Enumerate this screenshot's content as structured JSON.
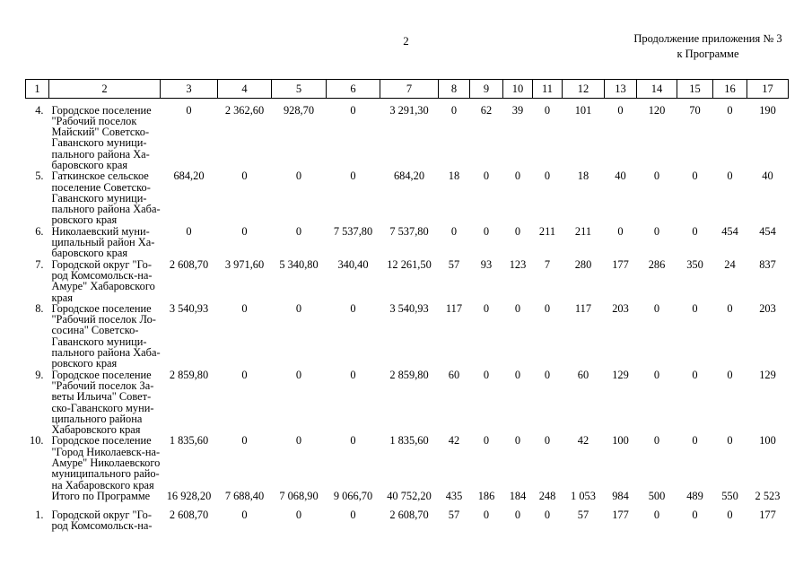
{
  "page_header": {
    "page_number": "2",
    "appendix_line1": "Продолжение приложения № 3",
    "appendix_line2": "к Программе"
  },
  "table": {
    "column_numbers": [
      "1",
      "2",
      "3",
      "4",
      "5",
      "6",
      "7",
      "8",
      "9",
      "10",
      "11",
      "12",
      "13",
      "14",
      "15",
      "16",
      "17"
    ],
    "rows": [
      {
        "num": "4.",
        "name_lines": [
          "Городское поселение",
          "\"Рабочий поселок",
          "Майский\" Советско-",
          "Гаванского муници-",
          "пального района Ха-",
          "баровского края"
        ],
        "values": [
          "0",
          "2 362,60",
          "928,70",
          "0",
          "3 291,30",
          "0",
          "62",
          "39",
          "0",
          "101",
          "0",
          "120",
          "70",
          "0",
          "190"
        ]
      },
      {
        "num": "5.",
        "name_lines": [
          "Гаткинское сельское",
          "поселение Советско-",
          "Гаванского муници-",
          "пального района Хаба-",
          "ровского края"
        ],
        "values": [
          "684,20",
          "0",
          "0",
          "0",
          "684,20",
          "18",
          "0",
          "0",
          "0",
          "18",
          "40",
          "0",
          "0",
          "0",
          "40"
        ]
      },
      {
        "num": "6.",
        "name_lines": [
          "Николаевский муни-",
          "ципальный район Ха-",
          "баровского края"
        ],
        "values": [
          "0",
          "0",
          "0",
          "7 537,80",
          "7 537,80",
          "0",
          "0",
          "0",
          "211",
          "211",
          "0",
          "0",
          "0",
          "454",
          "454"
        ]
      },
      {
        "num": "7.",
        "name_lines": [
          "Городской округ \"Го-",
          "род Комсомольск-на-",
          "Амуре\" Хабаровского",
          "края"
        ],
        "values": [
          "2 608,70",
          "3 971,60",
          "5 340,80",
          "340,40",
          "12 261,50",
          "57",
          "93",
          "123",
          "7",
          "280",
          "177",
          "286",
          "350",
          "24",
          "837"
        ]
      },
      {
        "num": "8.",
        "name_lines": [
          "Городское поселение",
          "\"Рабочий поселок Ло-",
          "сосина\" Советско-",
          "Гаванского муници-",
          "пального района Хаба-",
          "ровского края"
        ],
        "values": [
          "3 540,93",
          "0",
          "0",
          "0",
          "3 540,93",
          "117",
          "0",
          "0",
          "0",
          "117",
          "203",
          "0",
          "0",
          "0",
          "203"
        ]
      },
      {
        "num": "9.",
        "name_lines": [
          "Городское поселение",
          "\"Рабочий поселок За-",
          "веты Ильича\" Совет-",
          "ско-Гаванского муни-",
          "ципального района",
          "Хабаровского края"
        ],
        "values": [
          "2 859,80",
          "0",
          "0",
          "0",
          "2 859,80",
          "60",
          "0",
          "0",
          "0",
          "60",
          "129",
          "0",
          "0",
          "0",
          "129"
        ]
      },
      {
        "num": "10.",
        "name_lines": [
          "Городское поселение",
          "\"Город Николаевск-на-",
          "Амуре\" Николаевского",
          "муниципального райо-",
          "на Хабаровского края"
        ],
        "values": [
          "1 835,60",
          "0",
          "0",
          "0",
          "1 835,60",
          "42",
          "0",
          "0",
          "0",
          "42",
          "100",
          "0",
          "0",
          "0",
          "100"
        ]
      },
      {
        "num": "",
        "is_total": true,
        "name_lines": [
          "Итого по Программе"
        ],
        "values": [
          "16 928,20",
          "7 688,40",
          "7 068,90",
          "9 066,70",
          "40 752,20",
          "435",
          "186",
          "184",
          "248",
          "1 053",
          "984",
          "500",
          "489",
          "550",
          "2 523"
        ]
      },
      {
        "num": "1.",
        "name_lines": [
          "Городской округ \"Го-",
          "род Комсомольск-на-"
        ],
        "values": [
          "2 608,70",
          "0",
          "0",
          "0",
          "2 608,70",
          "57",
          "0",
          "0",
          "0",
          "57",
          "177",
          "0",
          "0",
          "0",
          "177"
        ]
      }
    ]
  }
}
